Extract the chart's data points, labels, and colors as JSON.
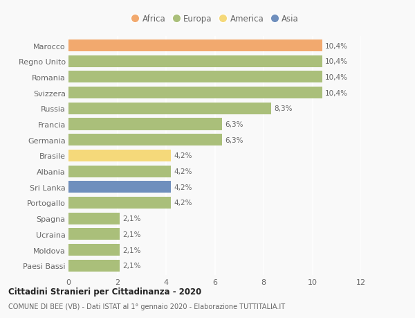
{
  "categories": [
    "Marocco",
    "Regno Unito",
    "Romania",
    "Svizzera",
    "Russia",
    "Francia",
    "Germania",
    "Brasile",
    "Albania",
    "Sri Lanka",
    "Portogallo",
    "Spagna",
    "Ucraina",
    "Moldova",
    "Paesi Bassi"
  ],
  "values": [
    10.4,
    10.4,
    10.4,
    10.4,
    8.3,
    6.3,
    6.3,
    4.2,
    4.2,
    4.2,
    4.2,
    2.1,
    2.1,
    2.1,
    2.1
  ],
  "labels": [
    "10,4%",
    "10,4%",
    "10,4%",
    "10,4%",
    "8,3%",
    "6,3%",
    "6,3%",
    "4,2%",
    "4,2%",
    "4,2%",
    "4,2%",
    "2,1%",
    "2,1%",
    "2,1%",
    "2,1%"
  ],
  "colors": [
    "#F2A96E",
    "#AABF7A",
    "#AABF7A",
    "#AABF7A",
    "#AABF7A",
    "#AABF7A",
    "#AABF7A",
    "#F5D97A",
    "#AABF7A",
    "#6F8FBD",
    "#AABF7A",
    "#AABF7A",
    "#AABF7A",
    "#AABF7A",
    "#AABF7A"
  ],
  "legend": [
    {
      "label": "Africa",
      "color": "#F2A96E"
    },
    {
      "label": "Europa",
      "color": "#AABF7A"
    },
    {
      "label": "America",
      "color": "#F5D97A"
    },
    {
      "label": "Asia",
      "color": "#6F8FBD"
    }
  ],
  "title": "Cittadini Stranieri per Cittadinanza - 2020",
  "subtitle": "COMUNE DI BEE (VB) - Dati ISTAT al 1° gennaio 2020 - Elaborazione TUTTITALIA.IT",
  "xlim": [
    0,
    12
  ],
  "xticks": [
    0,
    2,
    4,
    6,
    8,
    10,
    12
  ],
  "background_color": "#f9f9f9",
  "grid_color": "#ffffff",
  "text_color": "#666666",
  "title_color": "#222222",
  "subtitle_color": "#666666",
  "bar_height": 0.75,
  "bar_gap": 0.25
}
